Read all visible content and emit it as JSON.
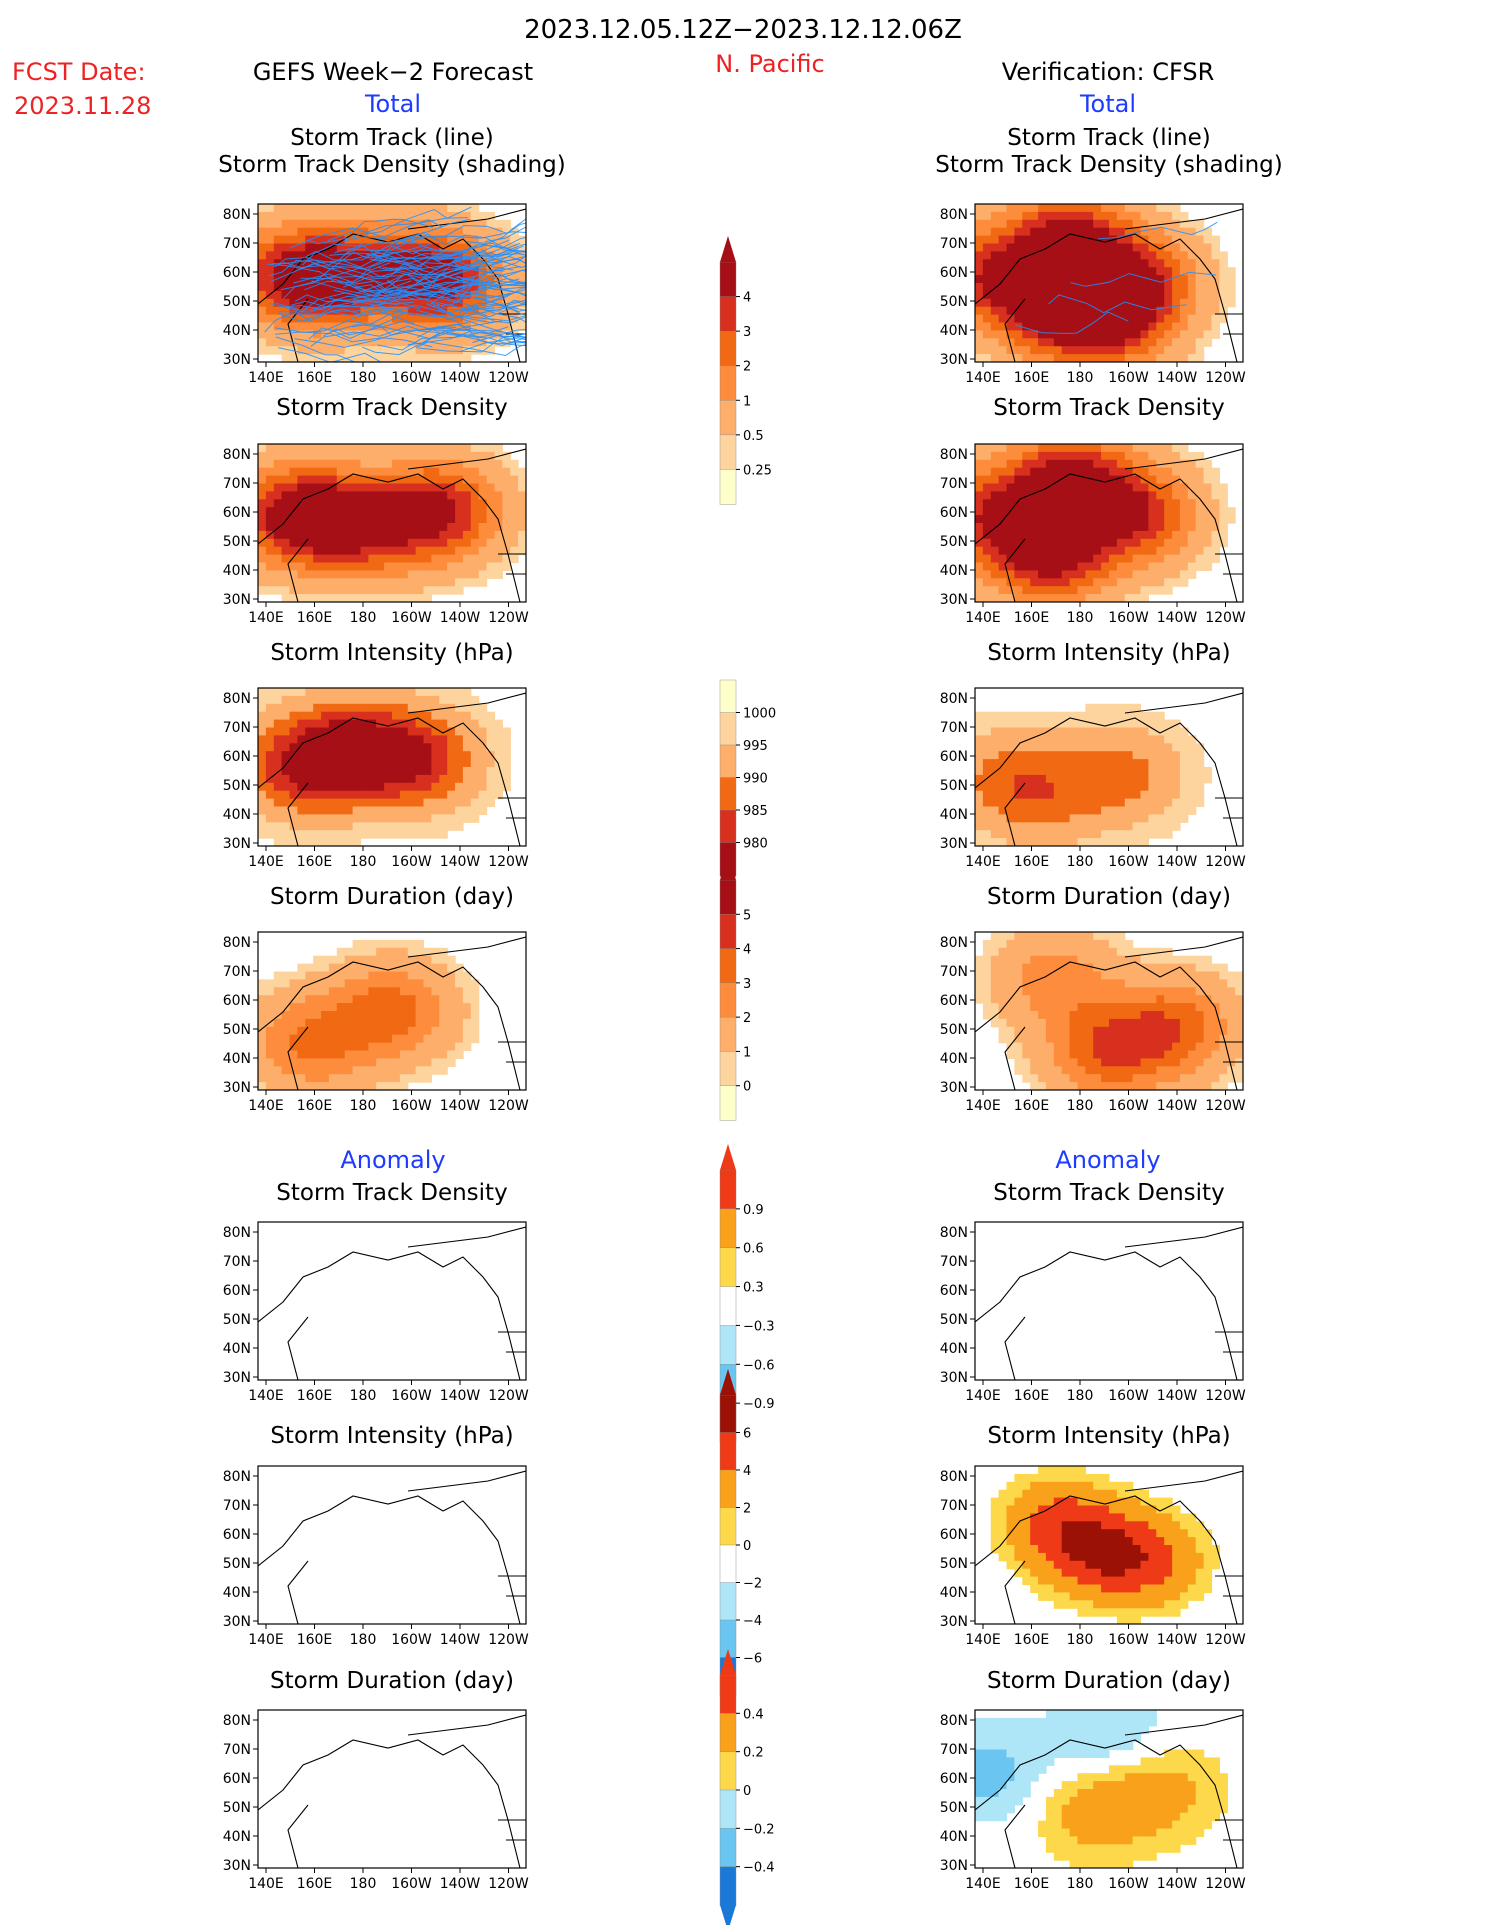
{
  "header": {
    "title": "2023.12.05.12Z−2023.12.12.06Z",
    "region": "N. Pacific",
    "fcst_label": "FCST Date:",
    "fcst_date": "2023.11.28",
    "left_title": "GEFS Week−2 Forecast",
    "right_title": "Verification: CFSR",
    "left_sub": "Total",
    "right_sub": "Total",
    "left_anom": "Anomaly",
    "right_anom": "Anomaly"
  },
  "colors": {
    "title": "#000000",
    "red_label": "#ee2222",
    "blue_label": "#1e3cff",
    "track_line": "#1e90ff"
  },
  "chart_data": [
    {
      "type": "heatmap",
      "column": "forecast",
      "group": "total",
      "title": [
        "Storm Track (line)",
        "Storm Track Density (shading)"
      ],
      "xticks": [
        "140E",
        "160E",
        "180",
        "160W",
        "140W",
        "120W"
      ],
      "yticks": [
        "80N",
        "70N",
        "60N",
        "50N",
        "40N",
        "30N"
      ],
      "level": 0.82,
      "colorbar": "track",
      "blobs": [
        [
          0.12,
          0.55,
          0.8
        ],
        [
          0.28,
          0.52,
          0.7
        ],
        [
          0.7,
          0.5,
          0.9
        ],
        [
          0.5,
          0.6,
          0.5
        ]
      ],
      "tracks": true,
      "track_count": 120
    },
    {
      "type": "heatmap",
      "column": "verification",
      "group": "total",
      "title": [
        "Storm Track (line)",
        "Storm Track Density (shading)"
      ],
      "xticks": [
        "140E",
        "160E",
        "180",
        "160W",
        "140W",
        "120W"
      ],
      "yticks": [
        "80N",
        "70N",
        "60N",
        "50N",
        "40N",
        "30N"
      ],
      "level": 0.9,
      "colorbar": "track",
      "blobs": [
        [
          0.35,
          0.75,
          1
        ],
        [
          0.3,
          0.35,
          0.9
        ],
        [
          0.6,
          0.5,
          0.8
        ],
        [
          0.05,
          0.55,
          0.7
        ],
        [
          0.5,
          0.25,
          0.7
        ]
      ],
      "tracks": true,
      "track_count": 4
    },
    {
      "type": "heatmap",
      "column": "forecast",
      "group": "total",
      "title": [
        "Storm Track Density"
      ],
      "xticks": [
        "140E",
        "160E",
        "180",
        "160W",
        "140W",
        "120W"
      ],
      "yticks": [
        "80N",
        "70N",
        "60N",
        "50N",
        "40N",
        "30N"
      ],
      "level": 0.82,
      "colorbar": "track",
      "blobs": [
        [
          0.12,
          0.55,
          0.85
        ],
        [
          0.28,
          0.52,
          0.7
        ],
        [
          0.68,
          0.58,
          0.95
        ],
        [
          0.45,
          0.45,
          0.5
        ]
      ],
      "tracks": false
    },
    {
      "type": "heatmap",
      "column": "verification",
      "group": "total",
      "title": [
        "Storm Track Density"
      ],
      "xticks": [
        "140E",
        "160E",
        "180",
        "160W",
        "140W",
        "120W"
      ],
      "yticks": [
        "80N",
        "70N",
        "60N",
        "50N",
        "40N",
        "30N"
      ],
      "level": 0.9,
      "colorbar": "track",
      "blobs": [
        [
          0.35,
          0.75,
          1
        ],
        [
          0.28,
          0.3,
          0.95
        ],
        [
          0.6,
          0.55,
          0.8
        ],
        [
          0.05,
          0.55,
          0.7
        ]
      ],
      "tracks": false
    },
    {
      "type": "heatmap",
      "column": "forecast",
      "group": "total",
      "title": [
        "Storm Intensity (hPa)"
      ],
      "xticks": [
        "140E",
        "160E",
        "180",
        "160W",
        "140W",
        "120W"
      ],
      "yticks": [
        "80N",
        "70N",
        "60N",
        "50N",
        "40N",
        "30N"
      ],
      "level": 0.85,
      "colorbar": "intensity",
      "blobs": [
        [
          0.35,
          0.6,
          0.95
        ],
        [
          0.6,
          0.55,
          0.8
        ],
        [
          0.15,
          0.5,
          0.75
        ]
      ],
      "tracks": false
    },
    {
      "type": "heatmap",
      "column": "verification",
      "group": "total",
      "title": [
        "Storm Intensity (hPa)"
      ],
      "xticks": [
        "140E",
        "160E",
        "180",
        "160W",
        "140W",
        "120W"
      ],
      "yticks": [
        "80N",
        "70N",
        "60N",
        "50N",
        "40N",
        "30N"
      ],
      "level": 0.6,
      "colorbar": "intensity",
      "blobs": [
        [
          0.55,
          0.45,
          0.7
        ],
        [
          0.25,
          0.3,
          0.6
        ],
        [
          0.1,
          0.45,
          0.5
        ]
      ],
      "tracks": false
    },
    {
      "type": "heatmap",
      "column": "forecast",
      "group": "total",
      "title": [
        "Storm Duration (day)"
      ],
      "xticks": [
        "140E",
        "160E",
        "180",
        "160W",
        "140W",
        "120W"
      ],
      "yticks": [
        "80N",
        "70N",
        "60N",
        "50N",
        "40N",
        "30N"
      ],
      "level": 0.85,
      "colorbar": "duration",
      "blobs": [
        [
          0.5,
          0.5,
          0.6
        ],
        [
          0.2,
          0.3,
          0.55
        ]
      ],
      "tracks": false
    },
    {
      "type": "heatmap",
      "column": "verification",
      "group": "total",
      "title": [
        "Storm Duration (day)"
      ],
      "xticks": [
        "140E",
        "160E",
        "180",
        "160W",
        "140W",
        "120W"
      ],
      "yticks": [
        "80N",
        "70N",
        "60N",
        "50N",
        "40N",
        "30N"
      ],
      "level": 0.6,
      "colorbar": "duration",
      "blobs": [
        [
          0.5,
          0.25,
          0.95
        ],
        [
          0.75,
          0.4,
          0.85
        ],
        [
          0.3,
          0.7,
          0.6
        ]
      ],
      "tracks": false
    },
    {
      "type": "heatmap",
      "column": "forecast",
      "group": "anomaly",
      "title": [
        "Storm Track Density"
      ],
      "xticks": [
        "140E",
        "160E",
        "180",
        "160W",
        "140W",
        "120W"
      ],
      "yticks": [
        "80N",
        "70N",
        "60N",
        "50N",
        "40N",
        "30N"
      ],
      "level": 0,
      "colorbar": "anom_density",
      "blobs": [
        [
          0.12,
          0.6,
          0.8
        ],
        [
          0.7,
          0.58,
          0.8
        ],
        [
          0.38,
          0.45,
          -0.9
        ],
        [
          0.25,
          0.25,
          -0.4
        ],
        [
          0.55,
          0.25,
          0.35
        ]
      ],
      "tracks": false
    },
    {
      "type": "heatmap",
      "column": "verification",
      "group": "anomaly",
      "title": [
        "Storm Track Density"
      ],
      "xticks": [
        "140E",
        "160E",
        "180",
        "160W",
        "140W",
        "120W"
      ],
      "yticks": [
        "80N",
        "70N",
        "60N",
        "50N",
        "40N",
        "30N"
      ],
      "level": 0,
      "colorbar": "anom_density",
      "blobs": [
        [
          0.3,
          0.45,
          -1
        ],
        [
          0.6,
          0.85,
          -0.8
        ],
        [
          0.45,
          0.25,
          0.9
        ],
        [
          0.55,
          0.65,
          0.8
        ],
        [
          0.1,
          0.15,
          0.7
        ]
      ],
      "tracks": false
    },
    {
      "type": "heatmap",
      "column": "forecast",
      "group": "anomaly",
      "title": [
        "Storm Intensity (hPa)"
      ],
      "xticks": [
        "140E",
        "160E",
        "180",
        "160W",
        "140W",
        "120W"
      ],
      "yticks": [
        "80N",
        "70N",
        "60N",
        "50N",
        "40N",
        "30N"
      ],
      "level": 0,
      "colorbar": "anom_intensity",
      "blobs": [
        [
          0.45,
          0.4,
          1
        ],
        [
          0.12,
          0.7,
          -0.6
        ],
        [
          0.85,
          0.3,
          -0.5
        ],
        [
          0.5,
          0.85,
          0.4
        ]
      ],
      "tracks": false
    },
    {
      "type": "heatmap",
      "column": "verification",
      "group": "anomaly",
      "title": [
        "Storm Intensity (hPa)"
      ],
      "xticks": [
        "140E",
        "160E",
        "180",
        "160W",
        "140W",
        "120W"
      ],
      "yticks": [
        "80N",
        "70N",
        "60N",
        "50N",
        "40N",
        "30N"
      ],
      "level": 0.45,
      "colorbar": "anom_intensity",
      "blobs": [
        [
          0.45,
          0.45,
          1
        ],
        [
          0.65,
          0.4,
          0.95
        ],
        [
          0.3,
          0.65,
          0.9
        ]
      ],
      "tracks": false
    },
    {
      "type": "heatmap",
      "column": "forecast",
      "group": "anomaly",
      "title": [
        "Storm Duration (day)"
      ],
      "xticks": [
        "140E",
        "160E",
        "180",
        "160W",
        "140W",
        "120W"
      ],
      "yticks": [
        "80N",
        "70N",
        "60N",
        "50N",
        "40N",
        "30N"
      ],
      "level": 0,
      "colorbar": "anom_duration",
      "blobs": [
        [
          0.4,
          0.9,
          0.9
        ],
        [
          0.3,
          0.55,
          -0.5
        ],
        [
          0.55,
          0.3,
          0.4
        ],
        [
          0.2,
          0.3,
          0.6
        ]
      ],
      "tracks": false
    },
    {
      "type": "heatmap",
      "column": "verification",
      "group": "anomaly",
      "title": [
        "Storm Duration (day)"
      ],
      "xticks": [
        "140E",
        "160E",
        "180",
        "160W",
        "140W",
        "120W"
      ],
      "yticks": [
        "80N",
        "70N",
        "60N",
        "50N",
        "40N",
        "30N"
      ],
      "level": 0.45,
      "colorbar": "anom_duration",
      "blobs": [
        [
          0.45,
          0.35,
          1
        ],
        [
          0.7,
          0.5,
          0.9
        ],
        [
          0.05,
          0.6,
          -0.9
        ],
        [
          0.5,
          0.85,
          -0.8
        ]
      ],
      "tracks": false
    }
  ],
  "colorbars": {
    "track": {
      "labels": [
        "4",
        "3",
        "2",
        "1",
        "0.5",
        "0.25"
      ],
      "colors": [
        "#a50f15",
        "#d7301f",
        "#f16913",
        "#fd8d3c",
        "#fdae6b",
        "#fdd49e",
        "#ffffcc"
      ],
      "tail": "bottom"
    },
    "intensity": {
      "labels": [
        "1000",
        "995",
        "990",
        "985",
        "980"
      ],
      "colors": [
        "#ffffcc",
        "#fdd49e",
        "#fdae6b",
        "#f16913",
        "#d7301f",
        "#a50f15"
      ],
      "tail": "top"
    },
    "duration": {
      "labels": [
        "5",
        "4",
        "3",
        "2",
        "1",
        "0"
      ],
      "colors": [
        "#a50f15",
        "#d7301f",
        "#f16913",
        "#fd8d3c",
        "#fdae6b",
        "#fdd49e",
        "#ffffcc"
      ],
      "tail": "bottom"
    },
    "anom_density": {
      "labels": [
        "0.9",
        "0.6",
        "0.3",
        "−0.3",
        "−0.6",
        "−0.9"
      ],
      "colors": [
        "#ee3a16",
        "#f9a11b",
        "#fdd84a",
        "#ffffff",
        "#aee6f7",
        "#6ac6f0",
        "#1c78d7"
      ]
    },
    "anom_intensity": {
      "labels": [
        "6",
        "4",
        "2",
        "0",
        "−2",
        "−4",
        "−6"
      ],
      "colors": [
        "#9b1105",
        "#ee3a16",
        "#f9a11b",
        "#fdd84a",
        "#ffffff",
        "#aee6f7",
        "#6ac6f0",
        "#1c78d7"
      ]
    },
    "anom_duration": {
      "labels": [
        "0.4",
        "0.2",
        "0",
        "−0.2",
        "−0.4"
      ],
      "colors": [
        "#ee3a16",
        "#f9a11b",
        "#fdd84a",
        "#aee6f7",
        "#6ac6f0",
        "#1c78d7"
      ]
    }
  }
}
